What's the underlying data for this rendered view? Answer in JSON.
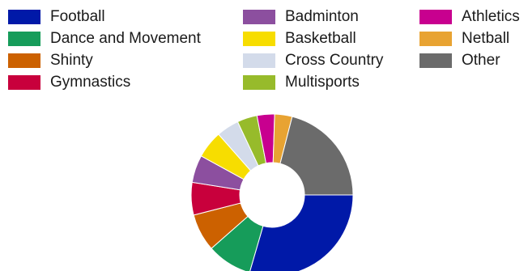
{
  "chart_data": {
    "type": "pie",
    "donut": true,
    "legend_position": "top",
    "series": [
      {
        "name": "Football",
        "value": 29.5,
        "color": "#0019a8"
      },
      {
        "name": "Dance and Movement",
        "value": 9.0,
        "color": "#169c5a"
      },
      {
        "name": "Shinty",
        "value": 7.5,
        "color": "#cc6100"
      },
      {
        "name": "Gymnastics",
        "value": 6.5,
        "color": "#c8003c"
      },
      {
        "name": "Badminton",
        "value": 5.5,
        "color": "#8c4f9f"
      },
      {
        "name": "Basketball",
        "value": 5.5,
        "color": "#f7dd00"
      },
      {
        "name": "Cross Country",
        "value": 4.5,
        "color": "#d3dbea"
      },
      {
        "name": "Multisports",
        "value": 4.0,
        "color": "#97bb2b"
      },
      {
        "name": "Athletics",
        "value": 3.5,
        "color": "#c8008f"
      },
      {
        "name": "Netball",
        "value": 3.5,
        "color": "#e8a332"
      },
      {
        "name": "Other",
        "value": 21.0,
        "color": "#6b6b6b"
      }
    ]
  }
}
